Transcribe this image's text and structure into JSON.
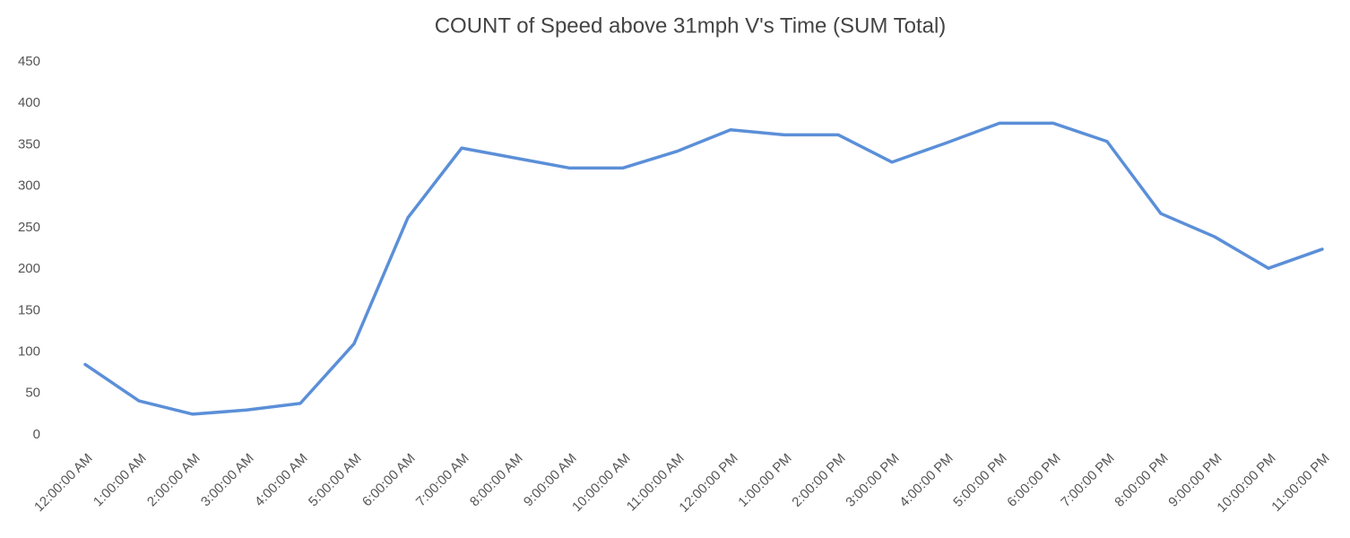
{
  "chart_data": {
    "type": "line",
    "title": "COUNT of Speed above 31mph V's Time (SUM Total)",
    "categories": [
      "12:00:00 AM",
      "1:00:00 AM",
      "2:00:00 AM",
      "3:00:00 AM",
      "4:00:00 AM",
      "5:00:00 AM",
      "6:00:00 AM",
      "7:00:00 AM",
      "8:00:00 AM",
      "9:00:00 AM",
      "10:00:00 AM",
      "11:00:00 AM",
      "12:00:00 PM",
      "1:00:00 PM",
      "2:00:00 PM",
      "3:00:00 PM",
      "4:00:00 PM",
      "5:00:00 PM",
      "6:00:00 PM",
      "7:00:00 PM",
      "8:00:00 PM",
      "9:00:00 PM",
      "10:00:00 PM",
      "11:00:00 PM"
    ],
    "values": [
      85,
      41,
      25,
      30,
      38,
      110,
      262,
      346,
      334,
      322,
      322,
      342,
      368,
      362,
      362,
      329,
      352,
      376,
      376,
      354,
      267,
      239,
      201,
      224
    ],
    "color": "#5b8fd8",
    "ylim": [
      0,
      450
    ],
    "yticks": [
      0,
      50,
      100,
      150,
      200,
      250,
      300,
      350,
      400,
      450
    ],
    "grid": false
  }
}
